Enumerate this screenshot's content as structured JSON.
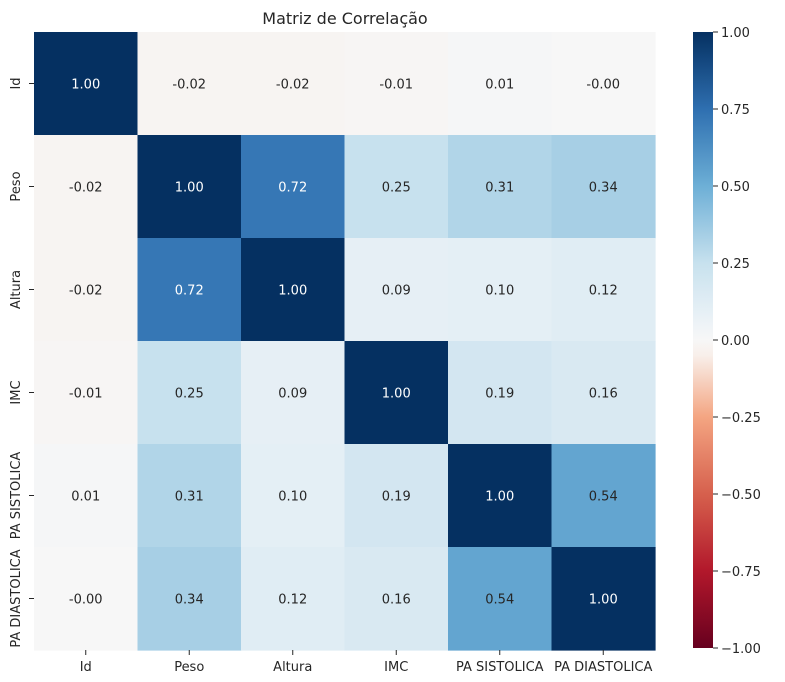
{
  "chart_data": {
    "type": "heatmap",
    "title": "Matriz de Correlação",
    "xlabel": "",
    "ylabel": "",
    "labels": [
      "Id",
      "Peso",
      "Altura",
      "IMC",
      "PA SISTOLICA",
      "PA DIASTOLICA"
    ],
    "values": [
      [
        1.0,
        -0.02,
        -0.02,
        -0.01,
        0.01,
        -0.0
      ],
      [
        -0.02,
        1.0,
        0.72,
        0.25,
        0.31,
        0.34
      ],
      [
        -0.02,
        0.72,
        1.0,
        0.09,
        0.1,
        0.12
      ],
      [
        -0.01,
        0.25,
        0.09,
        1.0,
        0.19,
        0.16
      ],
      [
        0.01,
        0.31,
        0.1,
        0.19,
        1.0,
        0.54
      ],
      [
        -0.0,
        0.34,
        0.12,
        0.16,
        0.54,
        1.0
      ]
    ],
    "cell_labels": [
      [
        "1.00",
        "-0.02",
        "-0.02",
        "-0.01",
        "0.01",
        "-0.00"
      ],
      [
        "-0.02",
        "1.00",
        "0.72",
        "0.25",
        "0.31",
        "0.34"
      ],
      [
        "-0.02",
        "0.72",
        "1.00",
        "0.09",
        "0.10",
        "0.12"
      ],
      [
        "-0.01",
        "0.25",
        "0.09",
        "1.00",
        "0.19",
        "0.16"
      ],
      [
        "0.01",
        "0.31",
        "0.10",
        "0.19",
        "1.00",
        "0.54"
      ],
      [
        "-0.00",
        "0.34",
        "0.12",
        "0.16",
        "0.54",
        "1.00"
      ]
    ],
    "colormap": "RdBu",
    "vmin": -1.0,
    "vmax": 1.0,
    "colorbar_ticks": [
      1.0,
      0.75,
      0.5,
      0.25,
      0.0,
      -0.25,
      -0.5,
      -0.75,
      -1.0
    ],
    "colorbar_tick_labels": [
      "1.00",
      "0.75",
      "0.50",
      "0.25",
      "0.00",
      "−0.25",
      "−0.50",
      "−0.75",
      "−1.00"
    ],
    "colormap_stops": [
      {
        "v": -1.0,
        "color": "#67001f"
      },
      {
        "v": -0.75,
        "color": "#b2182b"
      },
      {
        "v": -0.5,
        "color": "#d6604d"
      },
      {
        "v": -0.25,
        "color": "#f4a582"
      },
      {
        "v": -0.05,
        "color": "#f8efea"
      },
      {
        "v": 0.0,
        "color": "#f7f7f7"
      },
      {
        "v": 0.05,
        "color": "#eef3f7"
      },
      {
        "v": 0.25,
        "color": "#c7e1ee"
      },
      {
        "v": 0.5,
        "color": "#6dafd6"
      },
      {
        "v": 0.75,
        "color": "#2e6fb0"
      },
      {
        "v": 1.0,
        "color": "#053061"
      }
    ],
    "legend": "colorbar-right",
    "grid": false
  }
}
